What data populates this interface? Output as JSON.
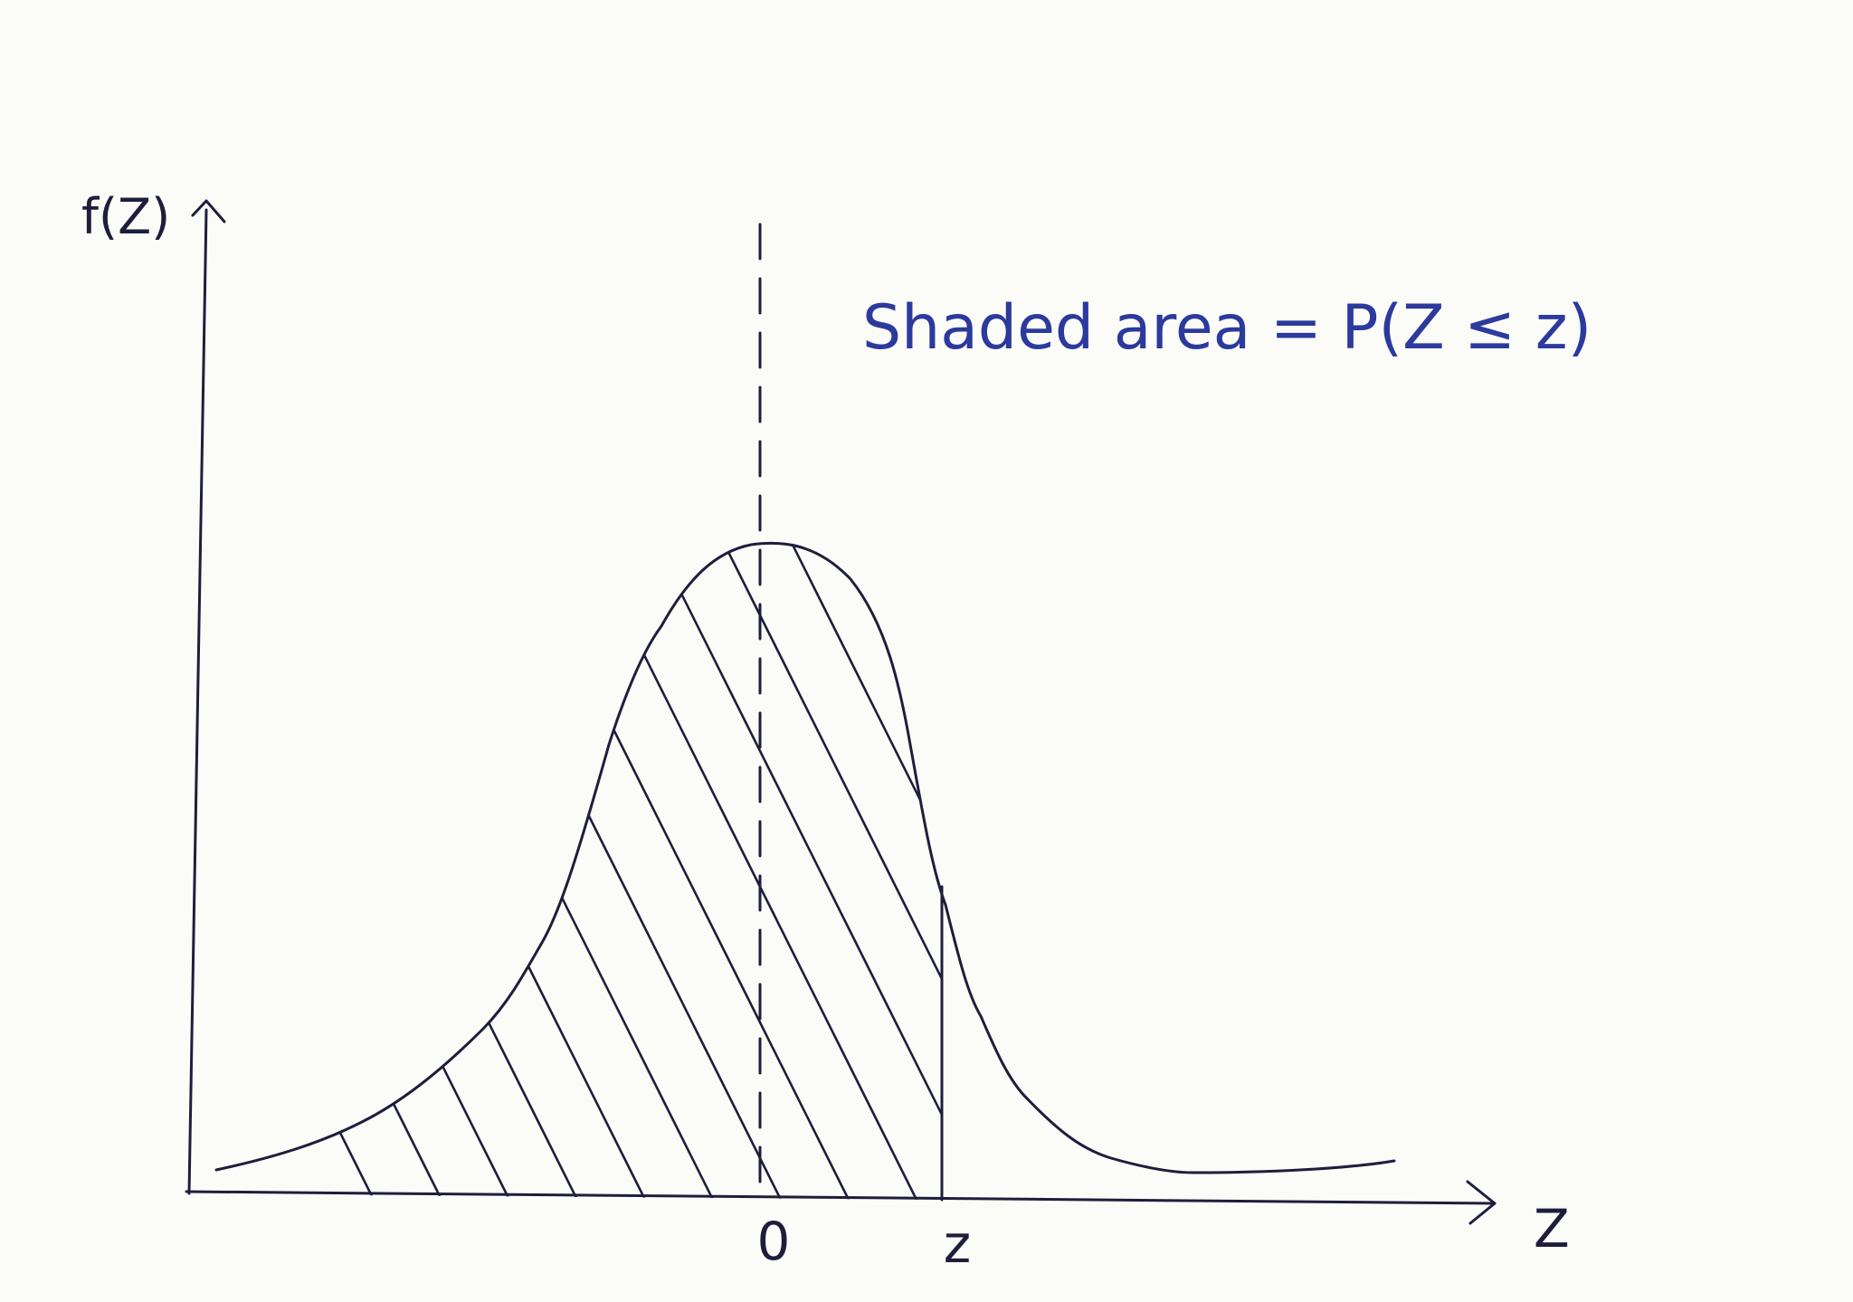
{
  "axes": {
    "y_label": "f(Z)",
    "x_label": "Z"
  },
  "ticks": [
    "0",
    "z"
  ],
  "annotation": "Shaded area = P(Z ≤ z)"
}
